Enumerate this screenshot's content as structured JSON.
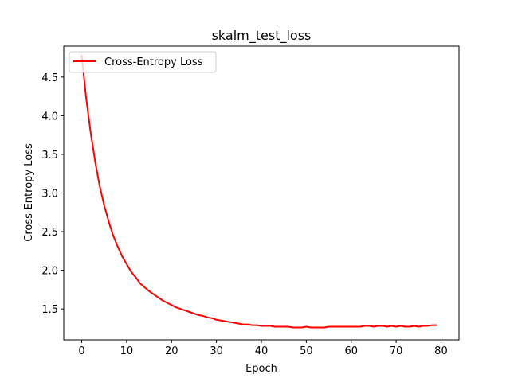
{
  "chart_data": {
    "type": "line",
    "title": "skalm_test_loss",
    "xlabel": "Epoch",
    "ylabel": "Cross-Entropy Loss",
    "xlim": [
      -4,
      84
    ],
    "ylim": [
      1.1,
      4.9
    ],
    "xticks": [
      0,
      10,
      20,
      30,
      40,
      50,
      60,
      70,
      80
    ],
    "yticks": [
      1.5,
      2.0,
      2.5,
      3.0,
      3.5,
      4.0,
      4.5
    ],
    "xtick_labels": [
      "0",
      "10",
      "20",
      "30",
      "40",
      "50",
      "60",
      "70",
      "80"
    ],
    "ytick_labels": [
      "1.5",
      "2.0",
      "2.5",
      "3.0",
      "3.5",
      "4.0",
      "4.5"
    ],
    "legend_position": "top-left",
    "grid": false,
    "series": [
      {
        "name": "Cross-Entropy Loss",
        "color": "#ff0000",
        "x": [
          0,
          1,
          2,
          3,
          4,
          5,
          6,
          7,
          8,
          9,
          10,
          11,
          12,
          13,
          14,
          15,
          16,
          17,
          18,
          19,
          20,
          21,
          22,
          23,
          24,
          25,
          26,
          27,
          28,
          29,
          30,
          31,
          32,
          33,
          34,
          35,
          36,
          37,
          38,
          39,
          40,
          41,
          42,
          43,
          44,
          45,
          46,
          47,
          48,
          49,
          50,
          51,
          52,
          53,
          54,
          55,
          56,
          57,
          58,
          59,
          60,
          61,
          62,
          63,
          64,
          65,
          66,
          67,
          68,
          69,
          70,
          71,
          72,
          73,
          74,
          75,
          76,
          77,
          78,
          79
        ],
        "y": [
          4.78,
          4.22,
          3.78,
          3.4,
          3.09,
          2.84,
          2.63,
          2.45,
          2.31,
          2.18,
          2.08,
          1.98,
          1.91,
          1.83,
          1.78,
          1.73,
          1.69,
          1.65,
          1.61,
          1.58,
          1.55,
          1.52,
          1.5,
          1.48,
          1.46,
          1.44,
          1.42,
          1.41,
          1.39,
          1.38,
          1.36,
          1.35,
          1.34,
          1.33,
          1.32,
          1.31,
          1.3,
          1.3,
          1.29,
          1.29,
          1.28,
          1.28,
          1.28,
          1.27,
          1.27,
          1.27,
          1.27,
          1.26,
          1.26,
          1.26,
          1.27,
          1.26,
          1.26,
          1.26,
          1.26,
          1.27,
          1.27,
          1.27,
          1.27,
          1.27,
          1.27,
          1.27,
          1.27,
          1.28,
          1.28,
          1.27,
          1.28,
          1.28,
          1.27,
          1.28,
          1.27,
          1.28,
          1.27,
          1.27,
          1.28,
          1.27,
          1.28,
          1.28,
          1.29,
          1.29
        ]
      }
    ]
  }
}
